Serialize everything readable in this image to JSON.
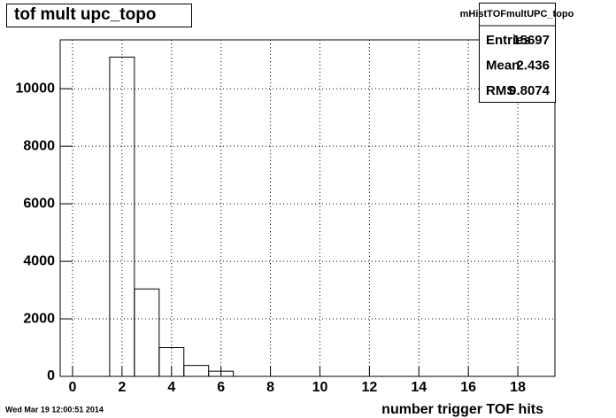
{
  "chart_data": {
    "type": "histogram",
    "title": "tof mult upc_topo",
    "x_label": "number trigger TOF hits",
    "bins": [
      -0.5,
      0.5,
      1.5,
      2.5,
      3.5,
      4.5,
      5.5,
      6.5,
      7.5,
      8.5,
      9.5,
      10.5,
      11.5,
      12.5,
      13.5,
      14.5,
      15.5,
      16.5,
      17.5,
      18.5,
      19.5
    ],
    "values": [
      0,
      0,
      11100,
      3040,
      1000,
      380,
      180,
      0,
      0,
      0,
      0,
      0,
      0,
      0,
      0,
      0,
      0,
      0,
      0,
      0
    ],
    "color": "#000000",
    "xlim": [
      -0.5,
      19.5
    ],
    "xticks": [
      0,
      2,
      4,
      6,
      8,
      10,
      12,
      14,
      16,
      18
    ],
    "ylim": [
      0,
      11700
    ],
    "yticks": [
      0,
      2000,
      4000,
      6000,
      8000,
      10000
    ],
    "grid": true,
    "stats": {
      "name": "mHistTOFmultUPC_topo",
      "rows": [
        [
          "Entries",
          15697
        ],
        [
          "Mean",
          2.436
        ],
        [
          "RMS",
          0.8074
        ]
      ]
    },
    "timestamp": "Wed Mar 19 12:00:51 2014"
  }
}
